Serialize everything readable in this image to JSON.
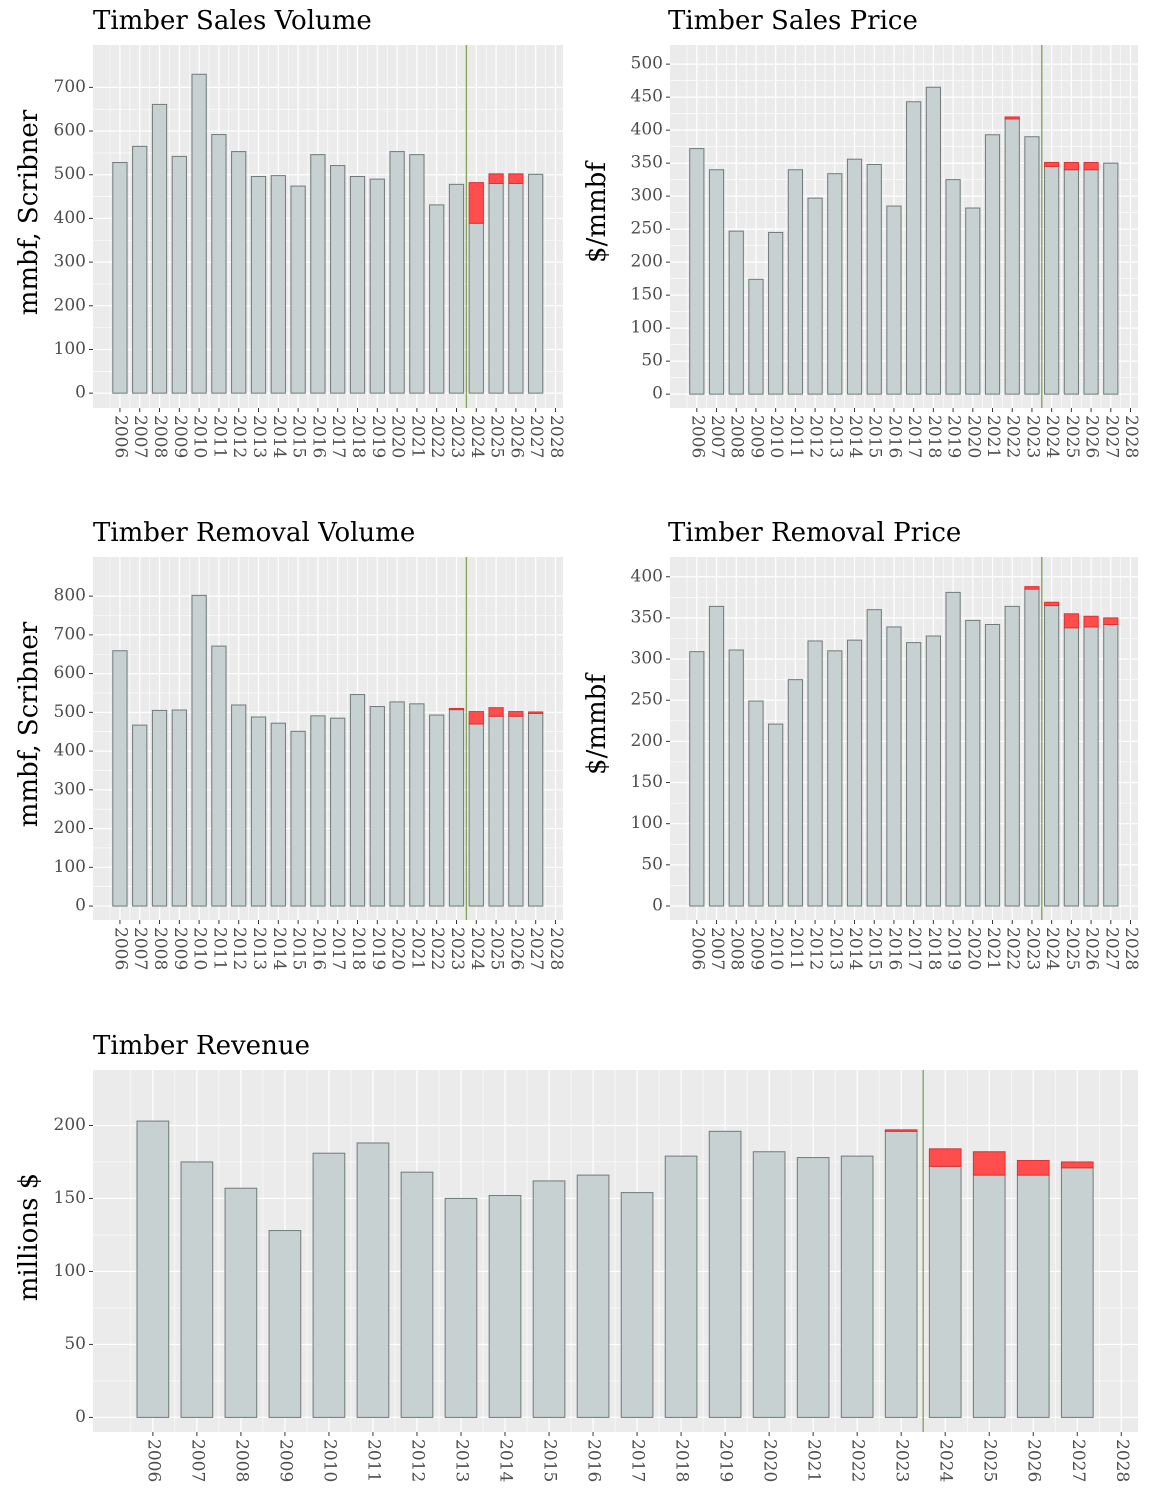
{
  "chart_data": [
    {
      "type": "bar",
      "title": "Timber Sales Volume",
      "y_label": "mmbf, Scribner",
      "categories": [
        "2006",
        "2007",
        "2008",
        "2009",
        "2010",
        "2011",
        "2012",
        "2013",
        "2014",
        "2015",
        "2016",
        "2017",
        "2018",
        "2019",
        "2020",
        "2021",
        "2022",
        "2023",
        "2024",
        "2025",
        "2026",
        "2027",
        "2028"
      ],
      "series": [
        {
          "color": "#c7d1d1",
          "values": [
            528,
            565,
            661,
            542,
            730,
            592,
            553,
            496,
            498,
            474,
            546,
            521,
            496,
            490,
            553,
            546,
            431,
            478,
            389,
            480,
            480,
            501,
            null
          ]
        },
        {
          "color": "#ff4545",
          "values": [
            null,
            null,
            null,
            null,
            null,
            null,
            null,
            null,
            null,
            null,
            null,
            null,
            null,
            null,
            null,
            null,
            null,
            null,
            93,
            22,
            22,
            null,
            null
          ]
        }
      ],
      "stacked": true,
      "ylim": [
        -34,
        797
      ],
      "yticks": [
        0,
        100,
        200,
        300,
        400,
        500,
        600,
        700
      ],
      "grid": true,
      "vline_before": "2024",
      "vline_color": "#86a75a"
    },
    {
      "type": "bar",
      "title": "Timber Sales Price",
      "y_label": "$/mmbf",
      "categories": [
        "2006",
        "2007",
        "2008",
        "2009",
        "2010",
        "2011",
        "2012",
        "2013",
        "2014",
        "2015",
        "2016",
        "2017",
        "2018",
        "2019",
        "2020",
        "2021",
        "2022",
        "2023",
        "2024",
        "2025",
        "2026",
        "2027",
        "2028"
      ],
      "series": [
        {
          "color": "#c7d1d1",
          "values": [
            372,
            340,
            247,
            174,
            245,
            340,
            297,
            334,
            356,
            348,
            285,
            443,
            465,
            325,
            282,
            393,
            417,
            390,
            345,
            340,
            340,
            350,
            null
          ]
        },
        {
          "color": "#ff4545",
          "values": [
            null,
            null,
            null,
            null,
            null,
            null,
            null,
            null,
            null,
            null,
            null,
            null,
            null,
            null,
            null,
            null,
            3,
            null,
            6,
            11,
            11,
            null,
            null
          ]
        }
      ],
      "stacked": true,
      "ylim": [
        -21,
        529
      ],
      "yticks": [
        0,
        50,
        100,
        150,
        200,
        250,
        300,
        350,
        400,
        450,
        500
      ],
      "grid": true,
      "vline_before": "2024",
      "vline_color": "#86a75a"
    },
    {
      "type": "bar",
      "title": "Timber Removal Volume",
      "y_label": "mmbf, Scribner",
      "categories": [
        "2006",
        "2007",
        "2008",
        "2009",
        "2010",
        "2011",
        "2012",
        "2013",
        "2014",
        "2015",
        "2016",
        "2017",
        "2018",
        "2019",
        "2020",
        "2021",
        "2022",
        "2023",
        "2024",
        "2025",
        "2026",
        "2027",
        "2028"
      ],
      "series": [
        {
          "color": "#c7d1d1",
          "values": [
            659,
            467,
            505,
            506,
            802,
            671,
            519,
            488,
            472,
            451,
            491,
            485,
            546,
            515,
            527,
            522,
            493,
            507,
            470,
            490,
            490,
            497,
            null
          ]
        },
        {
          "color": "#ff4545",
          "values": [
            null,
            null,
            null,
            null,
            null,
            null,
            null,
            null,
            null,
            null,
            null,
            null,
            null,
            null,
            null,
            null,
            null,
            3,
            32,
            22,
            12,
            4,
            null
          ]
        }
      ],
      "stacked": true,
      "ylim": [
        -36,
        901
      ],
      "yticks": [
        0,
        100,
        200,
        300,
        400,
        500,
        600,
        700,
        800
      ],
      "grid": true,
      "vline_before": "2024",
      "vline_color": "#86a75a"
    },
    {
      "type": "bar",
      "title": "Timber Removal Price",
      "y_label": "$/mmbf",
      "categories": [
        "2006",
        "2007",
        "2008",
        "2009",
        "2010",
        "2011",
        "2012",
        "2013",
        "2014",
        "2015",
        "2016",
        "2017",
        "2018",
        "2019",
        "2020",
        "2021",
        "2022",
        "2023",
        "2024",
        "2025",
        "2026",
        "2027",
        "2028"
      ],
      "series": [
        {
          "color": "#c7d1d1",
          "values": [
            309,
            364,
            311,
            249,
            221,
            275,
            322,
            310,
            323,
            360,
            339,
            320,
            328,
            381,
            347,
            342,
            364,
            385,
            365,
            338,
            339,
            342,
            null
          ]
        },
        {
          "color": "#ff4545",
          "values": [
            null,
            null,
            null,
            null,
            null,
            null,
            null,
            null,
            null,
            null,
            null,
            null,
            null,
            null,
            null,
            null,
            null,
            3,
            4,
            17,
            13,
            8,
            null
          ]
        }
      ],
      "stacked": true,
      "ylim": [
        -17,
        424
      ],
      "yticks": [
        0,
        50,
        100,
        150,
        200,
        250,
        300,
        350,
        400
      ],
      "grid": true,
      "vline_before": "2024",
      "vline_color": "#86a75a"
    },
    {
      "type": "bar",
      "title": "Timber Revenue",
      "y_label": "millions $",
      "categories": [
        "2006",
        "2007",
        "2008",
        "2009",
        "2010",
        "2011",
        "2012",
        "2013",
        "2014",
        "2015",
        "2016",
        "2017",
        "2018",
        "2019",
        "2020",
        "2021",
        "2022",
        "2023",
        "2024",
        "2025",
        "2026",
        "2027",
        "2028"
      ],
      "series": [
        {
          "color": "#c7d1d1",
          "values": [
            203,
            175,
            157,
            128,
            181,
            188,
            168,
            150,
            152,
            162,
            166,
            154,
            179,
            196,
            182,
            178,
            179,
            196,
            172,
            166,
            166,
            171,
            null
          ]
        },
        {
          "color": "#ff4545",
          "values": [
            null,
            null,
            null,
            null,
            null,
            null,
            null,
            null,
            null,
            null,
            null,
            null,
            null,
            null,
            null,
            null,
            null,
            1,
            12,
            16,
            10,
            4,
            null
          ]
        }
      ],
      "stacked": true,
      "ylim": [
        -10,
        238
      ],
      "yticks": [
        0,
        50,
        100,
        150,
        200
      ],
      "grid": true,
      "vline_before": "2024",
      "vline_color": "#86a75a"
    }
  ]
}
